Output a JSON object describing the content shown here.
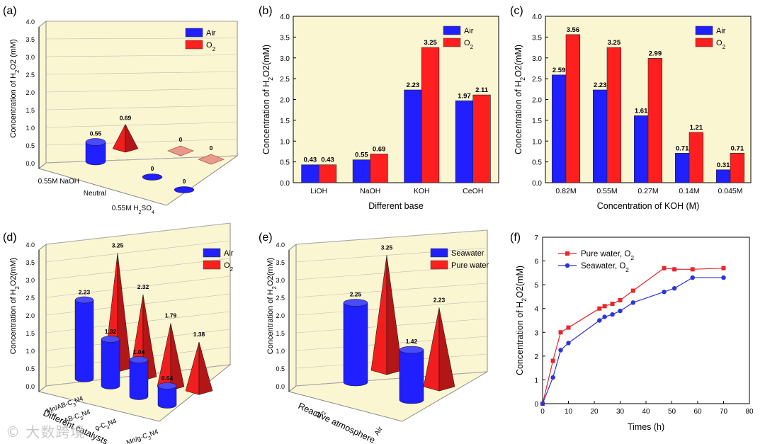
{
  "colors": {
    "air": "#1f1fff",
    "o2": "#ff1f1f",
    "wall": "#fbf6d2",
    "pure": "#e8262b",
    "sea": "#2b35d6"
  },
  "watermark": "© 大数跨境",
  "chart_data": [
    {
      "panel": "(a)",
      "type": "bar",
      "categories": [
        "0.55M NaOH",
        "Neutral",
        "0.55M H2SO4"
      ],
      "ylabel": "Concentration of H2O2 (mM)",
      "ylim": [
        0,
        4
      ],
      "yticks": [
        "0.0",
        "0.5",
        "1.0",
        "1.5",
        "2.0",
        "2.5",
        "3.0",
        "3.5",
        "4.0"
      ],
      "legend": {
        "position": "top-right",
        "entries": [
          "Air",
          "O2"
        ]
      },
      "series": [
        {
          "name": "Air",
          "values": [
            0.55,
            0,
            0
          ],
          "labels": [
            "0.55",
            "0",
            "0"
          ]
        },
        {
          "name": "O2",
          "values": [
            0.69,
            0,
            0
          ],
          "labels": [
            "0.69",
            "0",
            "0"
          ]
        }
      ]
    },
    {
      "panel": "(b)",
      "type": "bar",
      "categories": [
        "LiOH",
        "NaOH",
        "KOH",
        "CeOH"
      ],
      "xlabel": "Different base",
      "ylabel": "Concentration of H2O2(mM)",
      "ylim": [
        0,
        4
      ],
      "yticks": [
        "0.0",
        "0.5",
        "1.0",
        "1.5",
        "2.0",
        "2.5",
        "3.0",
        "3.5",
        "4.0"
      ],
      "legend": {
        "position": "top-right",
        "entries": [
          "Air",
          "O2"
        ]
      },
      "series": [
        {
          "name": "Air",
          "values": [
            0.43,
            0.55,
            2.23,
            1.97
          ],
          "labels": [
            "0.43",
            "0.55",
            "2.23",
            "1.97"
          ]
        },
        {
          "name": "O2",
          "values": [
            0.43,
            0.69,
            3.25,
            2.11
          ],
          "labels": [
            "0.43",
            "0.69",
            "3.25",
            "2.11"
          ]
        }
      ]
    },
    {
      "panel": "(c)",
      "type": "bar",
      "categories": [
        "0.82M",
        "0.55M",
        "0.27M",
        "0.14M",
        "0.045M"
      ],
      "xlabel": "Concentration of KOH (M)",
      "ylabel": "Concentration of H2O2(mM)",
      "ylim": [
        0,
        4
      ],
      "yticks": [
        "0.0",
        "0.5",
        "1.0",
        "1.5",
        "2.0",
        "2.5",
        "3.0",
        "3.5",
        "4.0"
      ],
      "legend": {
        "position": "top-right",
        "entries": [
          "Air",
          "O2"
        ]
      },
      "series": [
        {
          "name": "Air",
          "values": [
            2.59,
            2.23,
            1.61,
            0.71,
            0.31
          ],
          "labels": [
            "2.59",
            "2.23",
            "1.61",
            "0.71",
            "0.31"
          ]
        },
        {
          "name": "O2",
          "values": [
            3.56,
            3.25,
            2.99,
            1.21,
            0.71
          ],
          "labels": [
            "3.56",
            "3.25",
            "2.99",
            "1.21",
            "0.71"
          ]
        }
      ]
    },
    {
      "panel": "(d)",
      "type": "bar",
      "categories": [
        "Mn/AB-C3N4",
        "AB-C3N4",
        "g-C3N4",
        "Mn/g-C3N4"
      ],
      "xlabel": "Different catalysts",
      "ylabel": "Concentration of H2O2(mM)",
      "ylim": [
        0,
        4
      ],
      "yticks": [
        "0.0",
        "0.5",
        "1.0",
        "1.5",
        "2.0",
        "2.5",
        "3.0",
        "3.5",
        "4.0"
      ],
      "legend": {
        "position": "top-right",
        "entries": [
          "Air",
          "O2"
        ]
      },
      "series": [
        {
          "name": "Air",
          "values": [
            2.23,
            1.32,
            1.04,
            0.54
          ],
          "labels": [
            "2.23",
            "1.32",
            "1.04",
            "0.54"
          ]
        },
        {
          "name": "O2",
          "values": [
            3.25,
            2.32,
            1.79,
            1.38
          ],
          "labels": [
            "3.25",
            "2.32",
            "1.79",
            "1.38"
          ]
        }
      ]
    },
    {
      "panel": "(e)",
      "type": "bar",
      "categories": [
        "O2",
        "Air"
      ],
      "xlabel": "Reactive atmosphere",
      "ylabel": "Concentration of H2O2(mM)",
      "ylim": [
        0,
        4
      ],
      "yticks": [
        "0.0",
        "0.5",
        "1.0",
        "1.5",
        "2.0",
        "2.5",
        "3.0",
        "3.5",
        "4.0"
      ],
      "legend": {
        "position": "top-right",
        "entries": [
          "Seawater",
          "Pure water"
        ]
      },
      "series": [
        {
          "name": "Seawater",
          "values": [
            2.25,
            1.42
          ],
          "labels": [
            "2.25",
            "1.42"
          ]
        },
        {
          "name": "Pure water",
          "values": [
            3.25,
            2.23
          ],
          "labels": [
            "3.25",
            "2.23"
          ]
        }
      ]
    },
    {
      "panel": "(f)",
      "type": "line",
      "xlabel": "Times (h)",
      "ylabel": "Concentration of H2O2(mM)",
      "xlim": [
        0,
        80
      ],
      "ylim": [
        0,
        7
      ],
      "xticks": [
        "0",
        "10",
        "20",
        "30",
        "40",
        "50",
        "60",
        "70",
        "80"
      ],
      "yticks": [
        "0",
        "1",
        "2",
        "3",
        "4",
        "5",
        "6",
        "7"
      ],
      "legend": {
        "position": "top-left",
        "entries": [
          "Pure water, O2",
          "Seawater, O2"
        ]
      },
      "series": [
        {
          "name": "Pure water, O2",
          "x": [
            0,
            4,
            7,
            10,
            22,
            24,
            27,
            30,
            35,
            47,
            51,
            58,
            70
          ],
          "y": [
            0,
            1.8,
            3.0,
            3.2,
            4.0,
            4.1,
            4.2,
            4.35,
            4.75,
            5.7,
            5.65,
            5.65,
            5.7
          ]
        },
        {
          "name": "Seawater, O2",
          "x": [
            0,
            4,
            7,
            10,
            22,
            24,
            27,
            30,
            35,
            47,
            51,
            58,
            70
          ],
          "y": [
            0,
            1.1,
            2.25,
            2.55,
            3.5,
            3.65,
            3.75,
            3.9,
            4.25,
            4.7,
            4.85,
            5.3,
            5.3
          ]
        }
      ]
    }
  ]
}
